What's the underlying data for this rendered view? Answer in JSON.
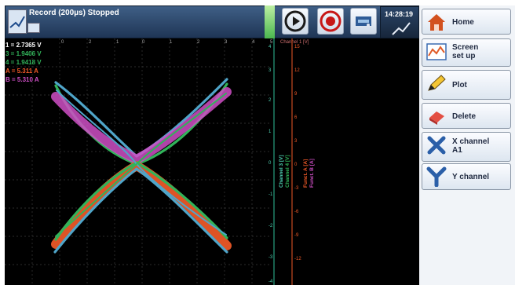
{
  "header": {
    "title": "Record (200µs) Stopped",
    "time": "14:28:19"
  },
  "readouts": {
    "line1": "1 = 2.7365 V",
    "line2": "3 = 1.9406 V",
    "line3": "4 = 1.9418 V",
    "line4": "A = 5.311 A",
    "line5": "B = 5.310 A"
  },
  "axes": {
    "x_ticks": [
      "0",
      "2",
      "1",
      "0",
      "1",
      "2",
      "3",
      "4",
      "5"
    ],
    "channel_label": "Channel 1 [V]",
    "axis1_ticks": [
      "4",
      "3",
      "2",
      "1",
      "0",
      "-1",
      "-2",
      "-3",
      "-4"
    ],
    "axis2_ticks": [
      "15",
      "12",
      "9",
      "6",
      "3",
      "0",
      "-3",
      "-6",
      "-9",
      "-12"
    ],
    "vert_label_1": "Channel 3 [V]",
    "vert_label_2": "Channel 4 [V]",
    "vert_label_3": "Funct. A [A]",
    "vert_label_4": "Funct. B [A]"
  },
  "menu": {
    "home": "Home",
    "screen_setup_1": "Screen",
    "screen_setup_2": "set up",
    "plot": "Plot",
    "delete": "Delete",
    "x_channel_1": "X channel",
    "x_channel_2": "A1",
    "y_channel": "Y channel"
  },
  "colors": {
    "curve_pink": "#cf4fc6",
    "curve_red": "#f15a28",
    "curve_green": "#31b35a",
    "curve_cyan": "#4fa5c9"
  }
}
